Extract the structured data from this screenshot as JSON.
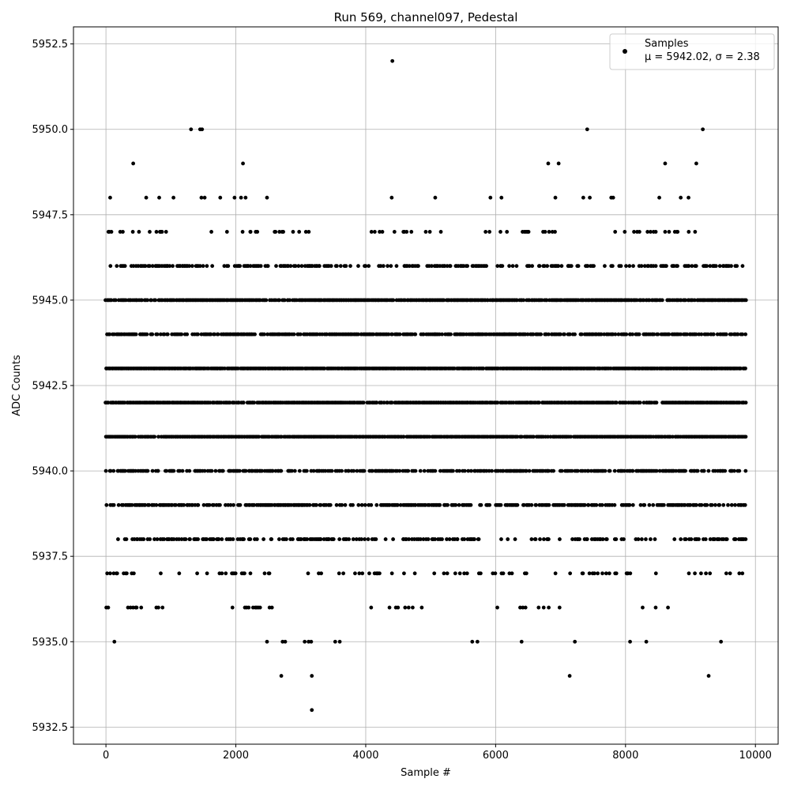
{
  "chart_data": {
    "type": "scatter",
    "title": "Run 569, channel097, Pedestal",
    "xlabel": "Sample #",
    "ylabel": "ADC Counts",
    "xlim": [
      -500,
      10350
    ],
    "ylim": [
      5932.0,
      5953.0
    ],
    "x_ticks": [
      0,
      2000,
      4000,
      6000,
      8000,
      10000
    ],
    "x_tick_labels": [
      "0",
      "2000",
      "4000",
      "6000",
      "8000",
      "10000"
    ],
    "y_ticks": [
      5932.5,
      5935.0,
      5937.5,
      5940.0,
      5942.5,
      5945.0,
      5947.5,
      5950.0,
      5952.5
    ],
    "y_tick_labels": [
      "5932.5",
      "5935.0",
      "5937.5",
      "5940.0",
      "5942.5",
      "5945.0",
      "5947.5",
      "5950.0",
      "5952.5"
    ],
    "grid": true,
    "legend": {
      "placement": "top-right",
      "entries": [
        "Samples",
        "μ = 5942.02, σ = 2.38"
      ]
    },
    "series": [
      {
        "name": "Samples",
        "color": "#000000",
        "x_start": 0,
        "x_end": 9850,
        "sample_count": 9851,
        "mean": 5942.02,
        "sigma": 2.38,
        "levels": [
          {
            "y": 5941,
            "density": 0.97
          },
          {
            "y": 5942,
            "density": 0.96
          },
          {
            "y": 5943,
            "density": 0.94
          },
          {
            "y": 5945,
            "density": 0.88
          },
          {
            "y": 5944,
            "density": 0.72
          },
          {
            "y": 5939,
            "density": 0.62
          },
          {
            "y": 5940,
            "density": 0.6
          },
          {
            "y": 5946,
            "density": 0.45
          },
          {
            "y": 5938,
            "density": 0.42
          },
          {
            "y": 5937,
            "density": 0.22
          },
          {
            "y": 5947,
            "density": 0.14
          },
          {
            "y": 5936,
            "density": 0.035
          }
        ],
        "sparse_points": [
          {
            "x": 65,
            "y": 5948
          },
          {
            "x": 420,
            "y": 5949
          },
          {
            "x": 620,
            "y": 5948
          },
          {
            "x": 820,
            "y": 5948
          },
          {
            "x": 1040,
            "y": 5948
          },
          {
            "x": 1310,
            "y": 5950
          },
          {
            "x": 1450,
            "y": 5950
          },
          {
            "x": 1480,
            "y": 5950
          },
          {
            "x": 1470,
            "y": 5948
          },
          {
            "x": 1520,
            "y": 5948
          },
          {
            "x": 1760,
            "y": 5948
          },
          {
            "x": 1980,
            "y": 5948
          },
          {
            "x": 2080,
            "y": 5948
          },
          {
            "x": 2110,
            "y": 5949
          },
          {
            "x": 2150,
            "y": 5948
          },
          {
            "x": 2480,
            "y": 5948
          },
          {
            "x": 4400,
            "y": 5948
          },
          {
            "x": 4410,
            "y": 5952
          },
          {
            "x": 5070,
            "y": 5948
          },
          {
            "x": 5920,
            "y": 5948
          },
          {
            "x": 6090,
            "y": 5948
          },
          {
            "x": 6810,
            "y": 5949
          },
          {
            "x": 6920,
            "y": 5948
          },
          {
            "x": 6970,
            "y": 5949
          },
          {
            "x": 7350,
            "y": 5948
          },
          {
            "x": 7410,
            "y": 5950
          },
          {
            "x": 7450,
            "y": 5948
          },
          {
            "x": 7780,
            "y": 5948
          },
          {
            "x": 7810,
            "y": 5948
          },
          {
            "x": 8520,
            "y": 5948
          },
          {
            "x": 8610,
            "y": 5949
          },
          {
            "x": 8850,
            "y": 5948
          },
          {
            "x": 8970,
            "y": 5948
          },
          {
            "x": 9090,
            "y": 5949
          },
          {
            "x": 9190,
            "y": 5950
          },
          {
            "x": 130,
            "y": 5935
          },
          {
            "x": 2480,
            "y": 5935
          },
          {
            "x": 2720,
            "y": 5935
          },
          {
            "x": 2760,
            "y": 5935
          },
          {
            "x": 3060,
            "y": 5935
          },
          {
            "x": 3120,
            "y": 5935
          },
          {
            "x": 3160,
            "y": 5935
          },
          {
            "x": 3530,
            "y": 5935
          },
          {
            "x": 3600,
            "y": 5935
          },
          {
            "x": 5640,
            "y": 5935
          },
          {
            "x": 5720,
            "y": 5935
          },
          {
            "x": 6400,
            "y": 5935
          },
          {
            "x": 7220,
            "y": 5935
          },
          {
            "x": 8070,
            "y": 5935
          },
          {
            "x": 8320,
            "y": 5935
          },
          {
            "x": 9470,
            "y": 5935
          },
          {
            "x": 2700,
            "y": 5934
          },
          {
            "x": 3170,
            "y": 5934
          },
          {
            "x": 7140,
            "y": 5934
          },
          {
            "x": 9280,
            "y": 5934
          },
          {
            "x": 3170,
            "y": 5933
          }
        ]
      }
    ]
  }
}
